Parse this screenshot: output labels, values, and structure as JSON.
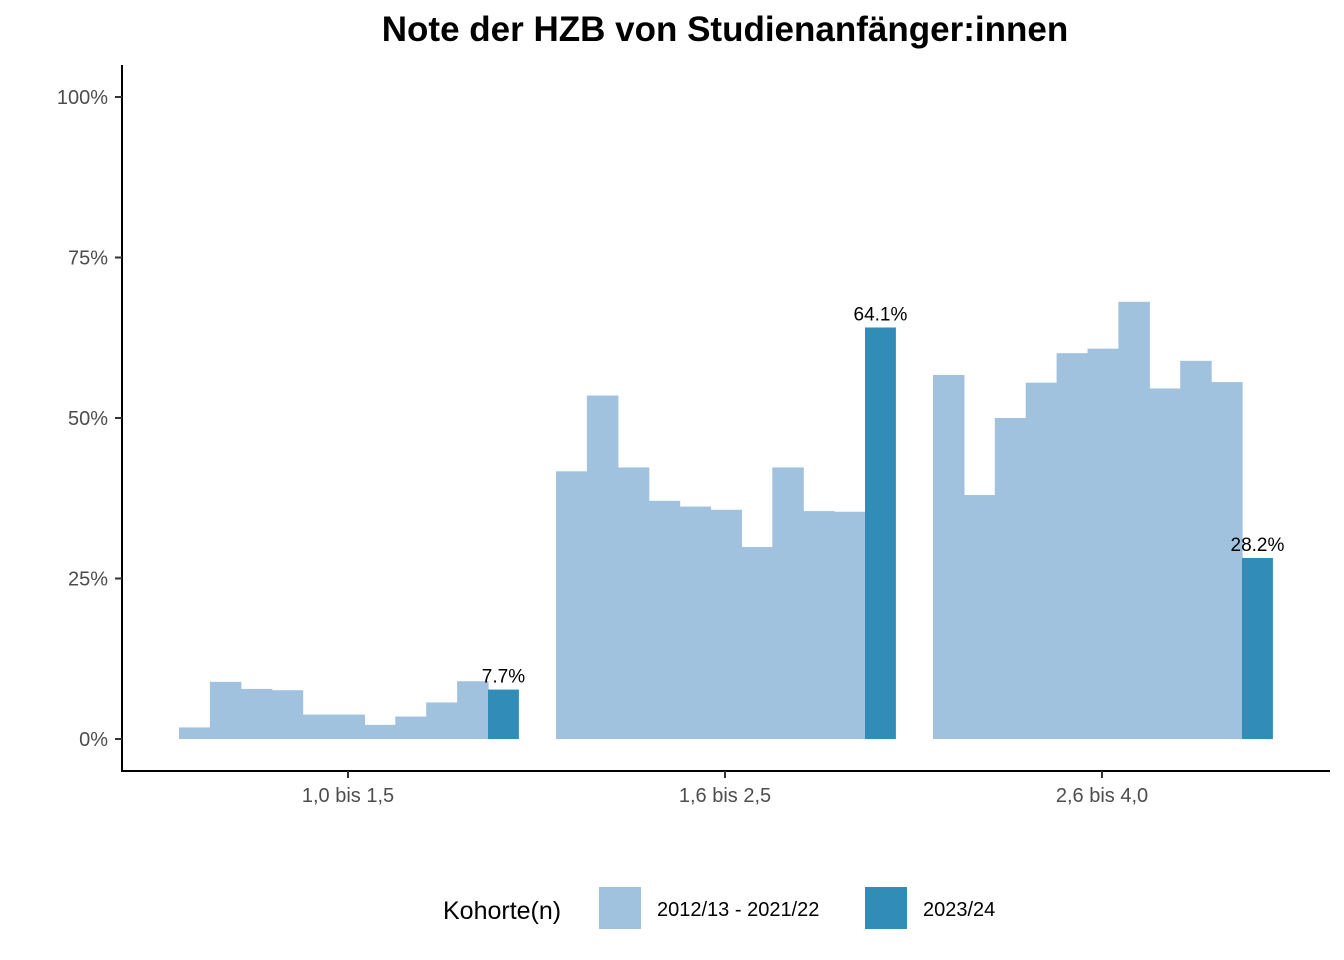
{
  "chart_data": {
    "type": "bar",
    "title": "Note der HZB von Studienanfänger:innen",
    "xlabel": "",
    "ylabel": "",
    "ylim": [
      0,
      1.05
    ],
    "y_ticks": [
      0,
      0.25,
      0.5,
      0.75,
      1.0
    ],
    "y_tick_labels": [
      "0%",
      "25%",
      "50%",
      "75%",
      "100%"
    ],
    "categories": [
      "1,0 bis 1,5",
      "1,6 bis 2,5",
      "2,6 bis 4,0"
    ],
    "series": [
      {
        "name": "2012/13 - 2021/22",
        "color": "#a1c2de",
        "values_per_category": [
          [
            0.018,
            0.089,
            0.078,
            0.076,
            0.038,
            0.038,
            0.022,
            0.035,
            0.057,
            0.09
          ],
          [
            0.417,
            0.535,
            0.423,
            0.371,
            0.362,
            0.357,
            0.299,
            0.423,
            0.355,
            0.354
          ],
          [
            0.567,
            0.38,
            0.5,
            0.555,
            0.601,
            0.608,
            0.681,
            0.546,
            0.589,
            0.556
          ]
        ]
      },
      {
        "name": "2023/24",
        "color": "#318cb8",
        "values": [
          0.077,
          0.641,
          0.282
        ],
        "data_labels": [
          "7.7%",
          "64.1%",
          "28.2%"
        ]
      }
    ],
    "legend": {
      "title": "Kohorte(n)",
      "position": "bottom",
      "entries": [
        "2012/13 - 2021/22",
        "2023/24"
      ]
    },
    "grid": false
  }
}
